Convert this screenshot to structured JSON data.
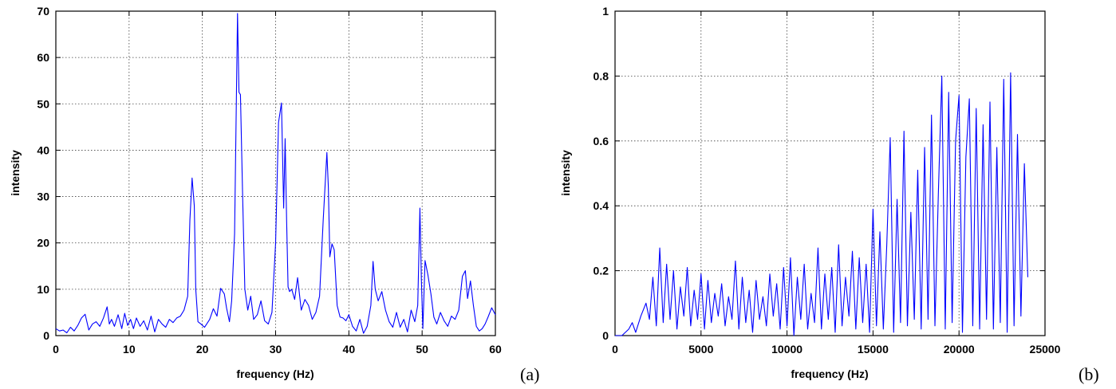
{
  "chart_data": [
    {
      "type": "line",
      "panel_tag": "(a)",
      "xlabel": "frequency (Hz)",
      "ylabel": "intensity",
      "xlim": [
        0,
        60
      ],
      "ylim": [
        0,
        70
      ],
      "xticks": [
        0,
        10,
        20,
        30,
        40,
        50,
        60
      ],
      "yticks": [
        0,
        10,
        20,
        30,
        40,
        50,
        60,
        70
      ],
      "xtick_labels": [
        "0",
        "10",
        "20",
        "30",
        "40",
        "50",
        "60"
      ],
      "ytick_labels": [
        "0",
        "10",
        "20",
        "30",
        "40",
        "50",
        "60",
        "70"
      ],
      "grid": true,
      "color": "#0000ff",
      "series": [
        {
          "x": [
            0,
            0.5,
            1,
            1.5,
            2,
            2.5,
            3,
            3.5,
            4,
            4.5,
            5,
            5.5,
            6,
            6.5,
            7,
            7.3,
            7.6,
            8,
            8.5,
            9,
            9.4,
            9.8,
            10.2,
            10.6,
            11,
            11.5,
            12,
            12.5,
            13,
            13.5,
            14,
            14.5,
            15,
            15.5,
            16,
            16.5,
            17,
            17.5,
            18,
            18.3,
            18.6,
            18.9,
            19.1,
            19.4,
            19.8,
            20.3,
            21,
            21.5,
            22,
            22.5,
            23,
            23.3,
            23.7,
            24,
            24.4,
            24.8,
            25,
            25.2,
            25.5,
            25.8,
            26.2,
            26.6,
            27,
            27.5,
            28,
            28.5,
            29,
            29.5,
            30,
            30.4,
            30.8,
            31.1,
            31.3,
            31.5,
            31.7,
            31.9,
            32.2,
            32.6,
            33,
            33.5,
            34,
            34.5,
            35,
            35.5,
            36,
            36.5,
            37,
            37.2,
            37.4,
            37.7,
            38,
            38.4,
            38.8,
            39.2,
            39.6,
            40,
            40.5,
            41,
            41.5,
            42,
            42.5,
            43,
            43.3,
            43.6,
            44,
            44.5,
            45,
            45.5,
            46,
            46.5,
            47,
            47.5,
            48,
            48.5,
            49,
            49.4,
            49.7,
            49.9,
            50.1,
            50.4,
            50.8,
            51.2,
            51.6,
            52,
            52.5,
            53,
            53.5,
            54,
            54.5,
            55,
            55.5,
            55.9,
            56.2,
            56.6,
            57,
            57.4,
            57.8,
            58.2,
            58.6,
            59,
            59.5,
            60
          ],
          "values": [
            1.5,
            1.0,
            1.2,
            0.6,
            1.8,
            1.0,
            2.2,
            3.8,
            4.6,
            1.2,
            2.5,
            3.0,
            2.0,
            3.8,
            6.2,
            2.5,
            3.5,
            2.0,
            4.5,
            1.5,
            4.8,
            2.2,
            3.5,
            1.5,
            3.8,
            2.0,
            3.2,
            1.2,
            4.2,
            0.8,
            3.5,
            2.5,
            1.8,
            3.5,
            2.8,
            3.8,
            4.2,
            5.5,
            8.5,
            25.0,
            34.0,
            28.0,
            10.0,
            3.0,
            2.5,
            1.8,
            3.5,
            5.8,
            4.2,
            10.2,
            9.0,
            6.0,
            3.0,
            7.5,
            22.0,
            69.5,
            52.5,
            52.0,
            30.0,
            10.0,
            5.5,
            8.5,
            3.5,
            4.5,
            7.5,
            3.2,
            2.5,
            5.0,
            20.0,
            46.0,
            50.2,
            27.5,
            42.5,
            25.0,
            10.5,
            9.5,
            10.0,
            7.8,
            12.5,
            5.5,
            7.8,
            6.5,
            3.5,
            5.0,
            8.5,
            25.0,
            39.5,
            32.0,
            17.0,
            19.8,
            18.5,
            6.5,
            4.0,
            3.8,
            3.2,
            4.5,
            2.0,
            1.0,
            3.5,
            0.5,
            2.0,
            6.5,
            16.0,
            10.0,
            7.5,
            9.5,
            5.5,
            3.0,
            1.8,
            5.0,
            1.8,
            3.5,
            0.8,
            5.5,
            3.0,
            6.5,
            27.5,
            12.0,
            1.5,
            16.2,
            13.0,
            9.0,
            4.0,
            2.5,
            5.0,
            3.2,
            2.0,
            4.2,
            3.5,
            5.5,
            12.8,
            14.0,
            8.0,
            11.8,
            6.5,
            2.0,
            1.0,
            1.5,
            2.5,
            4.0,
            6.0,
            4.5
          ]
        }
      ]
    },
    {
      "type": "line",
      "panel_tag": "(b)",
      "xlabel": "frequency (Hz)",
      "ylabel": "intensity",
      "xlim": [
        0,
        25000
      ],
      "ylim": [
        0,
        1
      ],
      "xticks": [
        0,
        5000,
        10000,
        15000,
        20000,
        25000
      ],
      "yticks": [
        0,
        0.2,
        0.4,
        0.6,
        0.8,
        1
      ],
      "xtick_labels": [
        "0",
        "5000",
        "10000",
        "15000",
        "20000",
        "25000"
      ],
      "ytick_labels": [
        "0",
        "0.2",
        "0.4",
        "0.6",
        "0.8",
        "1"
      ],
      "grid": true,
      "color": "#0000ff",
      "series": [
        {
          "x": [
            0,
            400,
            800,
            1000,
            1200,
            1500,
            1800,
            2000,
            2200,
            2400,
            2600,
            2800,
            3000,
            3200,
            3400,
            3600,
            3800,
            4000,
            4200,
            4400,
            4600,
            4800,
            5000,
            5200,
            5400,
            5600,
            5800,
            6000,
            6200,
            6400,
            6600,
            6800,
            7000,
            7200,
            7400,
            7600,
            7800,
            8000,
            8200,
            8400,
            8600,
            8800,
            9000,
            9200,
            9400,
            9600,
            9800,
            10000,
            10200,
            10400,
            10600,
            10800,
            11000,
            11200,
            11400,
            11600,
            11800,
            12000,
            12200,
            12400,
            12600,
            12800,
            13000,
            13200,
            13400,
            13600,
            13800,
            14000,
            14200,
            14400,
            14600,
            14800,
            15000,
            15200,
            15400,
            15600,
            15800,
            16000,
            16200,
            16400,
            16600,
            16800,
            17000,
            17200,
            17400,
            17600,
            17800,
            18000,
            18200,
            18400,
            18600,
            18800,
            19000,
            19200,
            19400,
            19600,
            19800,
            20000,
            20200,
            20400,
            20600,
            20800,
            21000,
            21200,
            21400,
            21600,
            21800,
            22000,
            22200,
            22400,
            22600,
            22800,
            23000,
            23200,
            23400,
            23600,
            23800,
            24000
          ],
          "values": [
            0.0,
            0.0,
            0.02,
            0.04,
            0.01,
            0.06,
            0.1,
            0.05,
            0.18,
            0.03,
            0.27,
            0.04,
            0.22,
            0.05,
            0.2,
            0.02,
            0.15,
            0.06,
            0.21,
            0.03,
            0.14,
            0.05,
            0.19,
            0.02,
            0.17,
            0.04,
            0.13,
            0.06,
            0.16,
            0.03,
            0.12,
            0.05,
            0.23,
            0.02,
            0.18,
            0.04,
            0.14,
            0.01,
            0.17,
            0.05,
            0.12,
            0.03,
            0.19,
            0.06,
            0.16,
            0.02,
            0.21,
            0.03,
            0.24,
            0.0,
            0.18,
            0.05,
            0.22,
            0.02,
            0.13,
            0.04,
            0.27,
            0.02,
            0.19,
            0.05,
            0.21,
            0.01,
            0.28,
            0.03,
            0.18,
            0.06,
            0.26,
            0.02,
            0.24,
            0.04,
            0.22,
            0.01,
            0.39,
            0.03,
            0.32,
            0.02,
            0.28,
            0.61,
            0.01,
            0.42,
            0.04,
            0.63,
            0.03,
            0.38,
            0.05,
            0.51,
            0.02,
            0.58,
            0.05,
            0.68,
            0.03,
            0.44,
            0.8,
            0.02,
            0.75,
            0.04,
            0.6,
            0.74,
            0.01,
            0.55,
            0.73,
            0.03,
            0.7,
            0.02,
            0.65,
            0.05,
            0.72,
            0.02,
            0.58,
            0.04,
            0.79,
            0.01,
            0.81,
            0.03,
            0.62,
            0.06,
            0.53,
            0.18
          ]
        }
      ]
    }
  ]
}
